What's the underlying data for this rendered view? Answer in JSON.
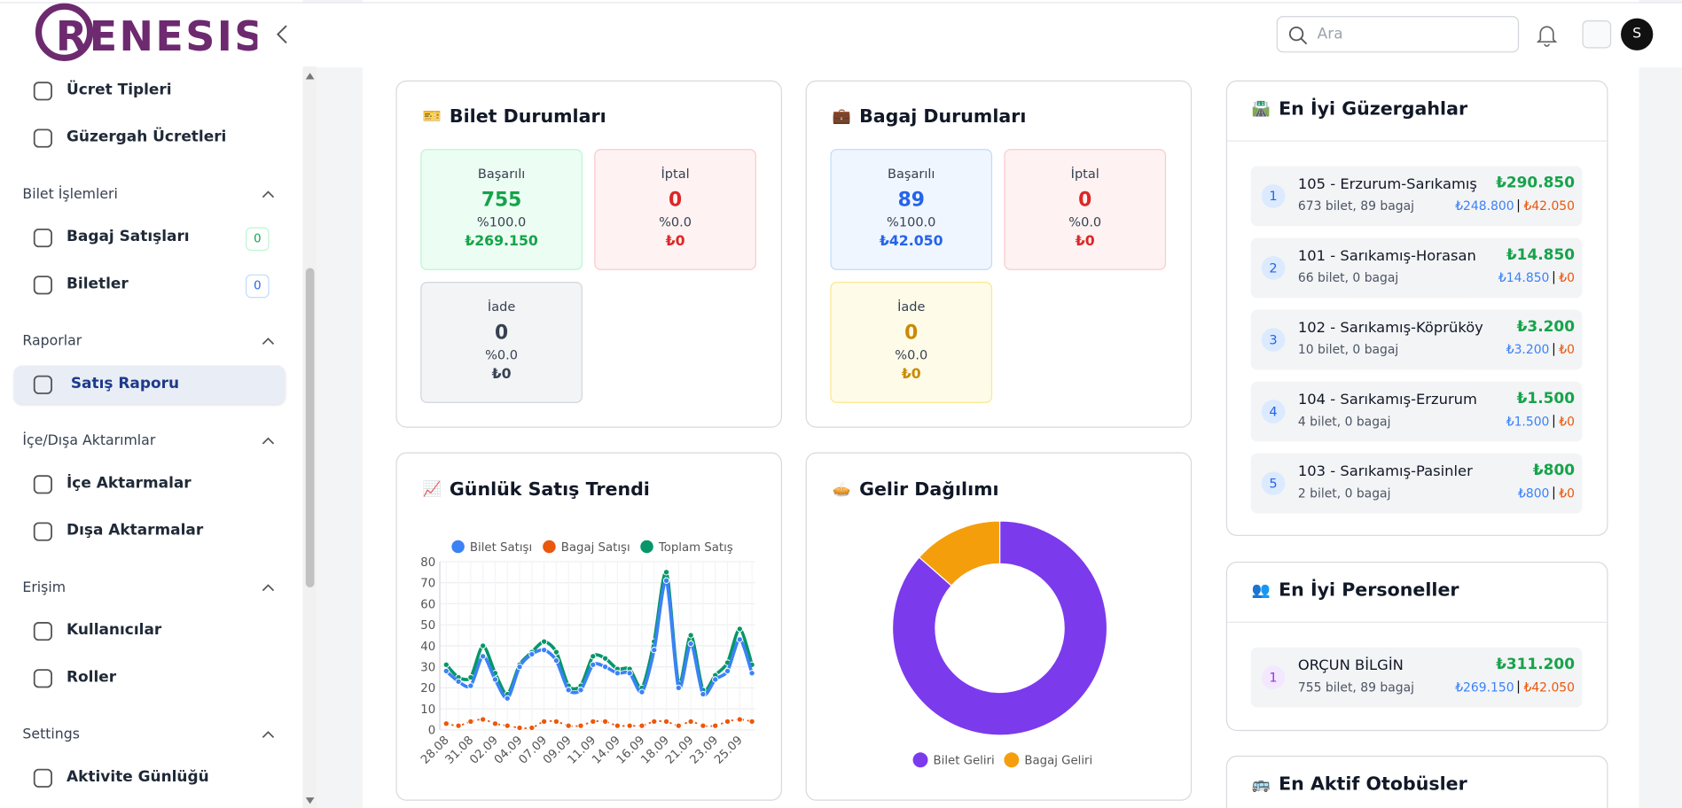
{
  "header": {
    "search_placeholder": "Ara",
    "avatar": "S"
  },
  "sidebar": {
    "logo": "RENESIS",
    "items": [
      {
        "label": "Ücret Tipleri"
      },
      {
        "label": "Güzergah Ücretleri"
      }
    ],
    "sections": [
      {
        "title": "Bilet İşlemleri",
        "items": [
          {
            "label": "Bagaj Satışları",
            "badge": "0"
          },
          {
            "label": "Biletler",
            "badge": "0"
          }
        ]
      },
      {
        "title": "Raporlar",
        "items": [
          {
            "label": "Satış Raporu",
            "active": true
          }
        ]
      },
      {
        "title": "İçe/Dışa Aktarımlar",
        "items": [
          {
            "label": "İçe Aktarmalar"
          },
          {
            "label": "Dışa Aktarmalar"
          }
        ]
      },
      {
        "title": "Erişim",
        "items": [
          {
            "label": "Kullanıcılar"
          },
          {
            "label": "Roller"
          }
        ]
      },
      {
        "title": "Settings",
        "items": [
          {
            "label": "Aktivite Günlüğü"
          }
        ]
      }
    ]
  },
  "status_cards": [
    {
      "icon": "🎫",
      "title": "Bilet Durumları",
      "stats": [
        {
          "label": "Başarılı",
          "count": "755",
          "percent": "%100.0",
          "amount": "₺269.150"
        },
        {
          "label": "İptal",
          "count": "0",
          "percent": "%0.0",
          "amount": "₺0"
        },
        {
          "label": "İade",
          "count": "0",
          "percent": "%0.0",
          "amount": "₺0"
        }
      ]
    },
    {
      "icon": "💼",
      "title": "Bagaj Durumları",
      "stats": [
        {
          "label": "Başarılı",
          "count": "89",
          "percent": "%100.0",
          "amount": "₺42.050"
        },
        {
          "label": "İptal",
          "count": "0",
          "percent": "%0.0",
          "amount": "₺0"
        },
        {
          "label": "İade",
          "count": "0",
          "percent": "%0.0",
          "amount": "₺0"
        }
      ]
    }
  ],
  "chart_data": [
    {
      "type": "line",
      "icon": "📈",
      "title": "Günlük Satış Trendi",
      "categories": [
        "28.08",
        null,
        "31.08",
        null,
        "02.09",
        null,
        "04.09",
        null,
        "07.09",
        null,
        "09.09",
        null,
        "11.09",
        null,
        "14.09",
        null,
        "16.09",
        null,
        "18.09",
        null,
        "21.09",
        null,
        "23.09",
        null,
        "25.09",
        null
      ],
      "series": [
        {
          "name": "Bilet Satışı",
          "color": "#3b82f6",
          "values": [
            28,
            23,
            21,
            35,
            24,
            15,
            30,
            36,
            38,
            33,
            19,
            19,
            31,
            30,
            27,
            27,
            18,
            38,
            71,
            20,
            41,
            17,
            24,
            28,
            43,
            27
          ]
        },
        {
          "name": "Bagaj Satışı",
          "color": "#ea580c",
          "values": [
            3,
            2,
            4,
            5,
            3,
            2,
            1,
            1,
            4,
            4,
            2,
            2,
            4,
            4,
            2,
            2,
            2,
            4,
            4,
            2,
            4,
            2,
            2,
            4,
            5,
            4
          ]
        },
        {
          "name": "Toplam Satış",
          "color": "#059669",
          "values": [
            31,
            25,
            25,
            40,
            27,
            17,
            31,
            37,
            42,
            37,
            21,
            21,
            35,
            34,
            29,
            29,
            20,
            42,
            75,
            22,
            45,
            19,
            26,
            32,
            48,
            31
          ]
        }
      ],
      "ylim": [
        0,
        80
      ],
      "yticks": [
        0,
        10,
        20,
        30,
        40,
        50,
        60,
        70,
        80
      ],
      "grid": true
    },
    {
      "type": "doughnut",
      "icon": "🥧",
      "title": "Gelir Dağılımı",
      "categories": [
        "Bilet Geliri",
        "Bagaj Geliri"
      ],
      "values": [
        269150,
        42050
      ],
      "colors": [
        "#7c3aed",
        "#f59e0b"
      ]
    }
  ],
  "routes": {
    "icon": "🛣️",
    "title": "En İyi Güzergahlar",
    "items": [
      {
        "rank": "1",
        "name": "105 - Erzurum-Sarıkamış",
        "detail": "673 bilet, 89 bagaj",
        "total": "₺290.850",
        "ticket": "₺248.800",
        "luggage": "₺42.050"
      },
      {
        "rank": "2",
        "name": "101 - Sarıkamış-Horasan",
        "detail": "66 bilet, 0 bagaj",
        "total": "₺14.850",
        "ticket": "₺14.850",
        "luggage": "₺0"
      },
      {
        "rank": "3",
        "name": "102 - Sarıkamış-Köprüköy",
        "detail": "10 bilet, 0 bagaj",
        "total": "₺3.200",
        "ticket": "₺3.200",
        "luggage": "₺0"
      },
      {
        "rank": "4",
        "name": "104 - Sarıkamış-Erzurum",
        "detail": "4 bilet, 0 bagaj",
        "total": "₺1.500",
        "ticket": "₺1.500",
        "luggage": "₺0"
      },
      {
        "rank": "5",
        "name": "103 - Sarıkamış-Pasinler",
        "detail": "2 bilet, 0 bagaj",
        "total": "₺800",
        "ticket": "₺800",
        "luggage": "₺0"
      }
    ]
  },
  "staff": {
    "icon": "👥",
    "title": "En İyi Personeller",
    "items": [
      {
        "rank": "1",
        "name": "ORÇUN BİLGİN",
        "detail": "755 bilet, 89 bagaj",
        "total": "₺311.200",
        "ticket": "₺269.150",
        "luggage": "₺42.050"
      }
    ]
  },
  "buses": {
    "icon": "🚌",
    "title": "En Aktif Otobüsler"
  }
}
